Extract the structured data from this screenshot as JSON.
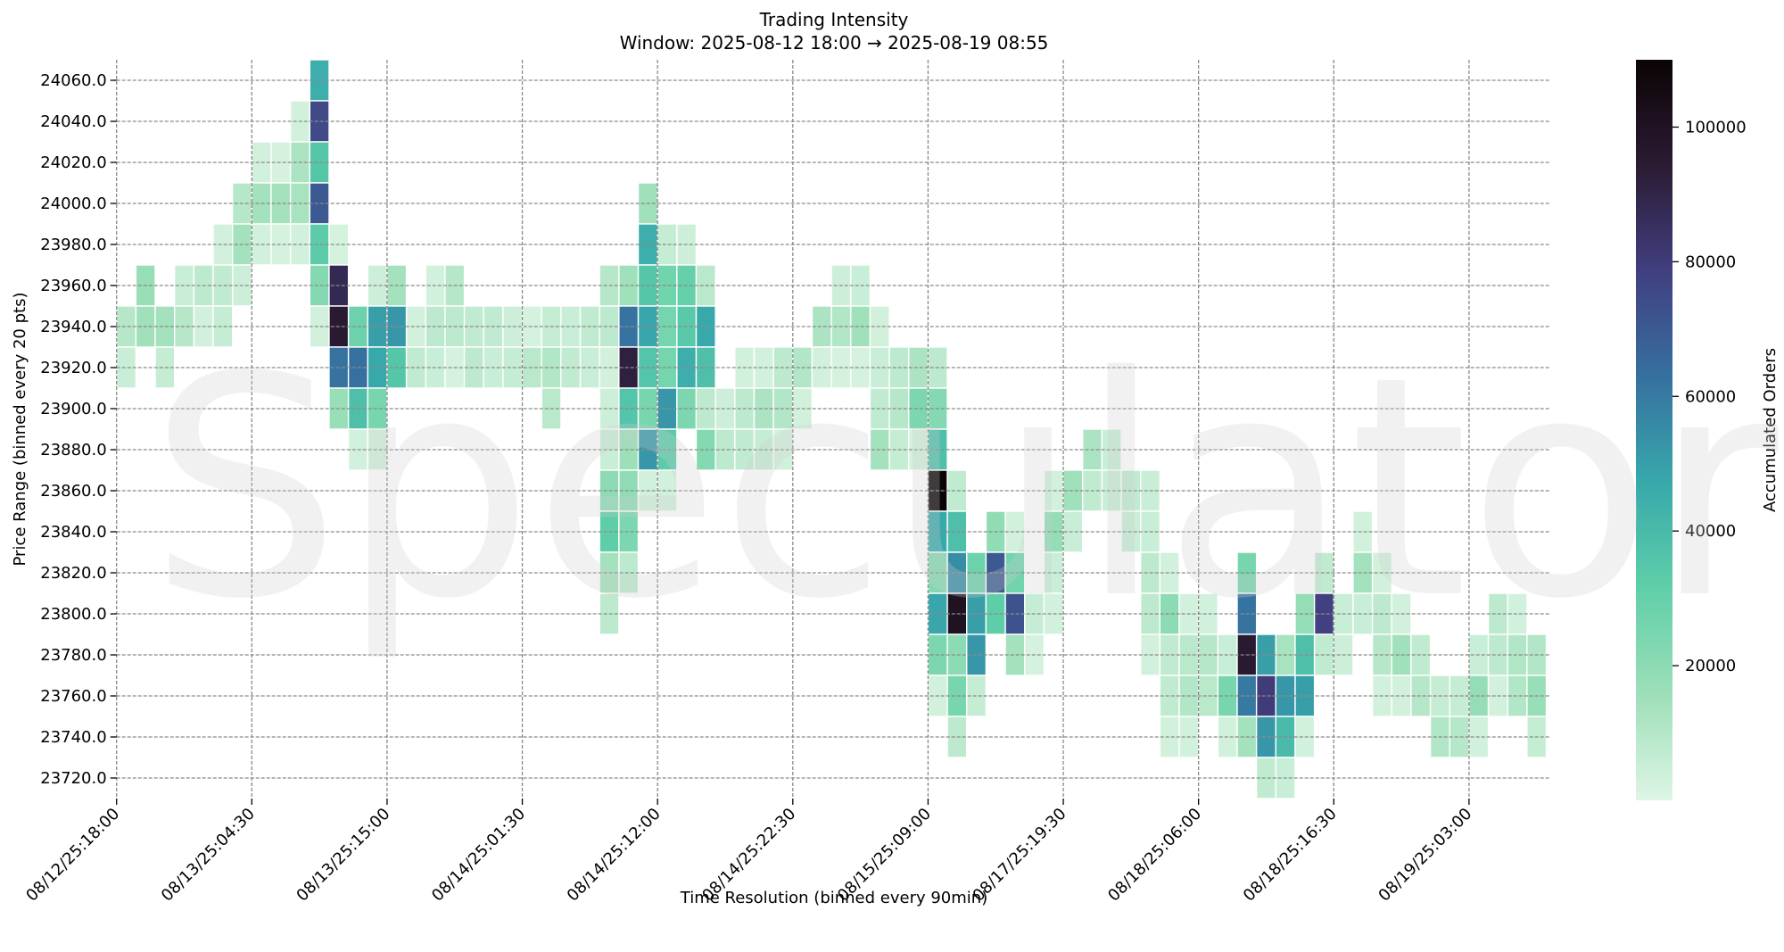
{
  "chart_data": {
    "type": "heatmap",
    "title": "Trading Intensity",
    "subtitle": "Window: 2025-08-12 18:00 → 2025-08-19 08:55",
    "xlabel": "Time Resolution (binned every 90min)",
    "ylabel": "Price Range (binned every 20 pts)",
    "colorbar_label": "Accumulated Orders",
    "colormap": "mako_r",
    "color_stops": [
      "#def5e5",
      "#9ddfb8",
      "#5fcfa9",
      "#38a9ab",
      "#3670a0",
      "#413f80",
      "#2b1b33",
      "#0b0405"
    ],
    "value_range": [
      0,
      110000
    ],
    "colorbar_ticks": [
      "20000",
      "40000",
      "60000",
      "80000",
      "100000"
    ],
    "colorbar_tick_values": [
      20000,
      40000,
      60000,
      80000,
      100000
    ],
    "watermark": "Speculator",
    "grid": true,
    "time_bin_count": 74,
    "x_ticks": [
      {
        "bin": 0,
        "label": "08/12/25:18:00"
      },
      {
        "bin": 7,
        "label": "08/13/25:04:30"
      },
      {
        "bin": 14,
        "label": "08/13/25:15:00"
      },
      {
        "bin": 21,
        "label": "08/14/25:01:30"
      },
      {
        "bin": 28,
        "label": "08/14/25:12:00"
      },
      {
        "bin": 35,
        "label": "08/14/25:22:30"
      },
      {
        "bin": 42,
        "label": "08/15/25:09:00"
      },
      {
        "bin": 49,
        "label": "08/17/25:19:30"
      },
      {
        "bin": 56,
        "label": "08/18/25:06:00"
      },
      {
        "bin": 63,
        "label": "08/18/25:16:30"
      },
      {
        "bin": 70,
        "label": "08/19/25:03:00"
      }
    ],
    "y_ticks": [
      "24060.0",
      "24040.0",
      "24020.0",
      "24000.0",
      "23980.0",
      "23960.0",
      "23940.0",
      "23920.0",
      "23900.0",
      "23880.0",
      "23860.0",
      "23840.0",
      "23820.0",
      "23800.0",
      "23780.0",
      "23760.0",
      "23740.0",
      "23720.0"
    ],
    "rows": [
      {
        "price": 24060,
        "cells": [
          [
            10,
            45000
          ]
        ]
      },
      {
        "price": 24040,
        "cells": [
          [
            9,
            3000
          ],
          [
            10,
            75000
          ]
        ]
      },
      {
        "price": 24020,
        "cells": [
          [
            7,
            3000
          ],
          [
            8,
            2000
          ],
          [
            9,
            12000
          ],
          [
            10,
            35000
          ]
        ]
      },
      {
        "price": 24000,
        "cells": [
          [
            6,
            10000
          ],
          [
            7,
            14000
          ],
          [
            8,
            14000
          ],
          [
            9,
            13000
          ],
          [
            10,
            70000
          ],
          [
            27,
            15000
          ]
        ]
      },
      {
        "price": 23980,
        "cells": [
          [
            5,
            3000
          ],
          [
            6,
            14000
          ],
          [
            7,
            3000
          ],
          [
            8,
            2500
          ],
          [
            9,
            3000
          ],
          [
            10,
            33000
          ],
          [
            11,
            2500
          ],
          [
            27,
            45000
          ],
          [
            28,
            6000
          ],
          [
            29,
            4000
          ]
        ]
      },
      {
        "price": 23960,
        "cells": [
          [
            1,
            17000
          ],
          [
            3,
            5000
          ],
          [
            4,
            8000
          ],
          [
            5,
            7000
          ],
          [
            6,
            4000
          ],
          [
            10,
            22000
          ],
          [
            11,
            88000
          ],
          [
            13,
            4000
          ],
          [
            14,
            14000
          ],
          [
            16,
            3000
          ],
          [
            17,
            10000
          ],
          [
            25,
            10000
          ],
          [
            26,
            15000
          ],
          [
            27,
            35000
          ],
          [
            28,
            27000
          ],
          [
            29,
            30000
          ],
          [
            30,
            9000
          ],
          [
            37,
            4000
          ],
          [
            38,
            5000
          ]
        ]
      },
      {
        "price": 23940,
        "cells": [
          [
            0,
            10000
          ],
          [
            1,
            15000
          ],
          [
            2,
            14000
          ],
          [
            3,
            10000
          ],
          [
            4,
            3000
          ],
          [
            5,
            6000
          ],
          [
            10,
            3000
          ],
          [
            11,
            95000
          ],
          [
            12,
            28000
          ],
          [
            13,
            50000
          ],
          [
            14,
            52000
          ],
          [
            15,
            3000
          ],
          [
            16,
            8000
          ],
          [
            17,
            8000
          ],
          [
            18,
            7000
          ],
          [
            19,
            7000
          ],
          [
            20,
            4000
          ],
          [
            21,
            2500
          ],
          [
            22,
            6000
          ],
          [
            23,
            5000
          ],
          [
            24,
            7000
          ],
          [
            25,
            8000
          ],
          [
            26,
            62000
          ],
          [
            27,
            48000
          ],
          [
            28,
            26000
          ],
          [
            29,
            34000
          ],
          [
            30,
            47000
          ],
          [
            36,
            12000
          ],
          [
            37,
            11000
          ],
          [
            38,
            15000
          ],
          [
            39,
            3000
          ]
        ]
      },
      {
        "price": 23920,
        "cells": [
          [
            0,
            5000
          ],
          [
            2,
            6000
          ],
          [
            11,
            62000
          ],
          [
            12,
            63000
          ],
          [
            13,
            47000
          ],
          [
            14,
            35000
          ],
          [
            15,
            7000
          ],
          [
            16,
            5000
          ],
          [
            17,
            2500
          ],
          [
            18,
            8000
          ],
          [
            19,
            5000
          ],
          [
            20,
            6000
          ],
          [
            21,
            9000
          ],
          [
            22,
            11000
          ],
          [
            23,
            7000
          ],
          [
            24,
            5000
          ],
          [
            25,
            3000
          ],
          [
            26,
            92000
          ],
          [
            27,
            36000
          ],
          [
            28,
            26000
          ],
          [
            29,
            45000
          ],
          [
            30,
            38000
          ],
          [
            32,
            3000
          ],
          [
            33,
            3000
          ],
          [
            34,
            8000
          ],
          [
            35,
            11000
          ],
          [
            36,
            3000
          ],
          [
            37,
            2500
          ],
          [
            38,
            2500
          ],
          [
            39,
            5000
          ],
          [
            40,
            8000
          ],
          [
            41,
            12000
          ],
          [
            42,
            8000
          ]
        ]
      },
      {
        "price": 23900,
        "cells": [
          [
            11,
            17000
          ],
          [
            12,
            38000
          ],
          [
            13,
            25000
          ],
          [
            22,
            9000
          ],
          [
            25,
            4000
          ],
          [
            26,
            36000
          ],
          [
            27,
            25000
          ],
          [
            28,
            52000
          ],
          [
            29,
            24000
          ],
          [
            30,
            8000
          ],
          [
            31,
            4000
          ],
          [
            32,
            8000
          ],
          [
            33,
            12000
          ],
          [
            34,
            11000
          ],
          [
            35,
            3000
          ],
          [
            39,
            7000
          ],
          [
            40,
            10000
          ],
          [
            41,
            24000
          ],
          [
            42,
            22000
          ]
        ]
      },
      {
        "price": 23880,
        "cells": [
          [
            12,
            3000
          ],
          [
            13,
            3000
          ],
          [
            25,
            5000
          ],
          [
            26,
            16000
          ],
          [
            27,
            52000
          ],
          [
            28,
            33000
          ],
          [
            30,
            22000
          ],
          [
            31,
            8000
          ],
          [
            32,
            7000
          ],
          [
            33,
            6000
          ],
          [
            34,
            3000
          ],
          [
            39,
            14000
          ],
          [
            40,
            6000
          ],
          [
            41,
            3000
          ],
          [
            42,
            38000
          ],
          [
            50,
            12000
          ],
          [
            51,
            5000
          ]
        ]
      },
      {
        "price": 23860,
        "cells": [
          [
            25,
            20000
          ],
          [
            26,
            19000
          ],
          [
            27,
            3000
          ],
          [
            28,
            3000
          ],
          [
            42,
            110000
          ],
          [
            43,
            7000
          ],
          [
            48,
            3000
          ],
          [
            49,
            15000
          ],
          [
            50,
            7000
          ],
          [
            51,
            5000
          ],
          [
            52,
            7000
          ],
          [
            53,
            5000
          ]
        ]
      },
      {
        "price": 23840,
        "cells": [
          [
            25,
            32000
          ],
          [
            26,
            24000
          ],
          [
            42,
            47000
          ],
          [
            43,
            38000
          ],
          [
            45,
            19000
          ],
          [
            46,
            3000
          ],
          [
            48,
            18000
          ],
          [
            49,
            5000
          ],
          [
            52,
            5000
          ],
          [
            53,
            5000
          ],
          [
            64,
            3000
          ]
        ]
      },
      {
        "price": 23820,
        "cells": [
          [
            25,
            14000
          ],
          [
            26,
            8000
          ],
          [
            42,
            22000
          ],
          [
            43,
            55000
          ],
          [
            44,
            28000
          ],
          [
            45,
            70000
          ],
          [
            46,
            27000
          ],
          [
            48,
            5000
          ],
          [
            53,
            8000
          ],
          [
            54,
            3000
          ],
          [
            58,
            25000
          ],
          [
            62,
            7000
          ],
          [
            64,
            14000
          ],
          [
            65,
            3000
          ]
        ]
      },
      {
        "price": 23800,
        "cells": [
          [
            25,
            8000
          ],
          [
            42,
            48000
          ],
          [
            43,
            100000
          ],
          [
            44,
            50000
          ],
          [
            45,
            32000
          ],
          [
            46,
            72000
          ],
          [
            47,
            6000
          ],
          [
            48,
            3000
          ],
          [
            53,
            8000
          ],
          [
            54,
            20000
          ],
          [
            55,
            3000
          ],
          [
            56,
            3000
          ],
          [
            58,
            62000
          ],
          [
            61,
            18000
          ],
          [
            62,
            78000
          ],
          [
            63,
            5000
          ],
          [
            64,
            5000
          ],
          [
            65,
            8000
          ],
          [
            66,
            3000
          ],
          [
            71,
            8000
          ],
          [
            72,
            3000
          ]
        ]
      },
      {
        "price": 23780,
        "cells": [
          [
            42,
            24000
          ],
          [
            43,
            20000
          ],
          [
            44,
            52000
          ],
          [
            46,
            14000
          ],
          [
            47,
            2500
          ],
          [
            53,
            3000
          ],
          [
            54,
            7000
          ],
          [
            55,
            9000
          ],
          [
            56,
            10000
          ],
          [
            57,
            5000
          ],
          [
            58,
            95000
          ],
          [
            59,
            50000
          ],
          [
            60,
            13000
          ],
          [
            61,
            38000
          ],
          [
            62,
            7000
          ],
          [
            63,
            4000
          ],
          [
            65,
            10000
          ],
          [
            66,
            15000
          ],
          [
            67,
            7000
          ],
          [
            70,
            5000
          ],
          [
            71,
            8000
          ],
          [
            72,
            11000
          ],
          [
            73,
            11000
          ]
        ]
      },
      {
        "price": 23760,
        "cells": [
          [
            42,
            3000
          ],
          [
            43,
            25000
          ],
          [
            44,
            6000
          ],
          [
            54,
            7000
          ],
          [
            55,
            11000
          ],
          [
            56,
            9000
          ],
          [
            57,
            25000
          ],
          [
            58,
            60000
          ],
          [
            59,
            80000
          ],
          [
            60,
            52000
          ],
          [
            61,
            50000
          ],
          [
            65,
            3000
          ],
          [
            66,
            3000
          ],
          [
            67,
            10000
          ],
          [
            68,
            6000
          ],
          [
            69,
            6000
          ],
          [
            70,
            18000
          ],
          [
            71,
            3000
          ],
          [
            72,
            11000
          ],
          [
            73,
            17000
          ]
        ]
      },
      {
        "price": 23740,
        "cells": [
          [
            43,
            8000
          ],
          [
            54,
            3000
          ],
          [
            55,
            3000
          ],
          [
            57,
            3000
          ],
          [
            58,
            14000
          ],
          [
            59,
            52000
          ],
          [
            60,
            40000
          ],
          [
            61,
            3000
          ],
          [
            68,
            11000
          ],
          [
            69,
            10000
          ],
          [
            70,
            3000
          ],
          [
            73,
            6000
          ]
        ]
      },
      {
        "price": 23720,
        "cells": [
          [
            59,
            7000
          ],
          [
            60,
            5000
          ]
        ]
      }
    ]
  }
}
